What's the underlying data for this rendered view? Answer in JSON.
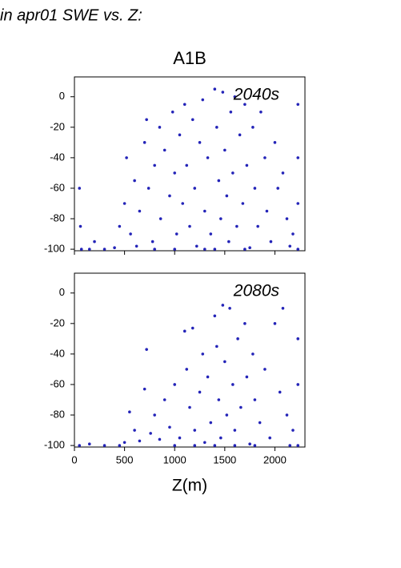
{
  "title": "in apr01 SWE vs. Z:",
  "chart_data": [
    {
      "type": "scatter",
      "title": "A1B",
      "annotation": "2040s",
      "color": "#2424b8",
      "x": [
        50,
        60,
        70,
        150,
        200,
        300,
        400,
        450,
        500,
        520,
        560,
        600,
        620,
        650,
        700,
        720,
        740,
        780,
        800,
        850,
        860,
        900,
        950,
        980,
        1000,
        1020,
        1050,
        1080,
        1100,
        1120,
        1150,
        1180,
        1200,
        1220,
        1250,
        1280,
        1300,
        1330,
        1360,
        1400,
        1420,
        1440,
        1460,
        1480,
        1500,
        1520,
        1540,
        1560,
        1580,
        1600,
        1620,
        1650,
        1680,
        1700,
        1720,
        1750,
        1780,
        1800,
        1830,
        1860,
        1900,
        1920,
        1960,
        2000,
        2030,
        2080,
        2120,
        2150,
        2180,
        2230,
        2230,
        2230,
        2230,
        1300,
        1000,
        800,
        1700,
        1400
      ],
      "values": [
        -60,
        -85,
        -100,
        -100,
        -95,
        -100,
        -99,
        -85,
        -70,
        -40,
        -90,
        -55,
        -98,
        -75,
        -30,
        -15,
        -60,
        -95,
        -45,
        -20,
        -80,
        -35,
        -65,
        -10,
        -50,
        -90,
        -25,
        -70,
        -5,
        -45,
        -85,
        -15,
        -60,
        -98,
        -30,
        -2,
        -75,
        -40,
        -90,
        5,
        -20,
        -55,
        -80,
        3,
        -35,
        -65,
        -95,
        -10,
        -50,
        0,
        -85,
        -25,
        -70,
        -5,
        -45,
        -99,
        -20,
        -60,
        -85,
        -10,
        -40,
        -75,
        -95,
        -30,
        -60,
        -50,
        -80,
        -98,
        -90,
        -5,
        -40,
        -70,
        -100,
        -100,
        -100,
        -100,
        -100,
        -100
      ],
      "xlim": [
        0,
        2300
      ],
      "xticks": [
        0,
        500,
        1000,
        1500,
        2000
      ],
      "ylim": [
        -101,
        13
      ],
      "yticks": [
        0,
        -20,
        -40,
        -60,
        -80,
        -100
      ]
    },
    {
      "type": "scatter",
      "annotation": "2080s",
      "xlabel": "Z(m)",
      "color": "#2424b8",
      "x": [
        50,
        150,
        300,
        450,
        500,
        550,
        600,
        650,
        700,
        720,
        760,
        800,
        850,
        900,
        950,
        1000,
        1050,
        1100,
        1120,
        1150,
        1180,
        1200,
        1250,
        1280,
        1300,
        1330,
        1360,
        1400,
        1420,
        1440,
        1460,
        1480,
        1500,
        1520,
        1550,
        1580,
        1600,
        1630,
        1660,
        1700,
        1720,
        1750,
        1780,
        1800,
        1850,
        1900,
        1950,
        2000,
        2050,
        2080,
        2120,
        2150,
        2180,
        2230,
        2230,
        2230,
        1000,
        1200,
        1400,
        1600,
        1800
      ],
      "values": [
        -100,
        -99,
        -100,
        -100,
        -98,
        -78,
        -90,
        -97,
        -63,
        -37,
        -92,
        -80,
        -96,
        -70,
        -88,
        -60,
        -95,
        -25,
        -50,
        -75,
        -23,
        -90,
        -65,
        -40,
        -98,
        -55,
        -85,
        -15,
        -35,
        -70,
        -95,
        -8,
        -45,
        -80,
        -10,
        -60,
        -90,
        -30,
        -75,
        -20,
        -55,
        -99,
        -40,
        -70,
        -85,
        -50,
        -95,
        -20,
        -65,
        -10,
        -80,
        -100,
        -90,
        -30,
        -60,
        -100,
        -100,
        -100,
        -100,
        -100,
        -100
      ],
      "xlim": [
        0,
        2300
      ],
      "xticks": [
        0,
        500,
        1000,
        1500,
        2000
      ],
      "ylim": [
        -101,
        13
      ],
      "yticks": [
        0,
        -20,
        -40,
        -60,
        -80,
        -100
      ]
    }
  ]
}
